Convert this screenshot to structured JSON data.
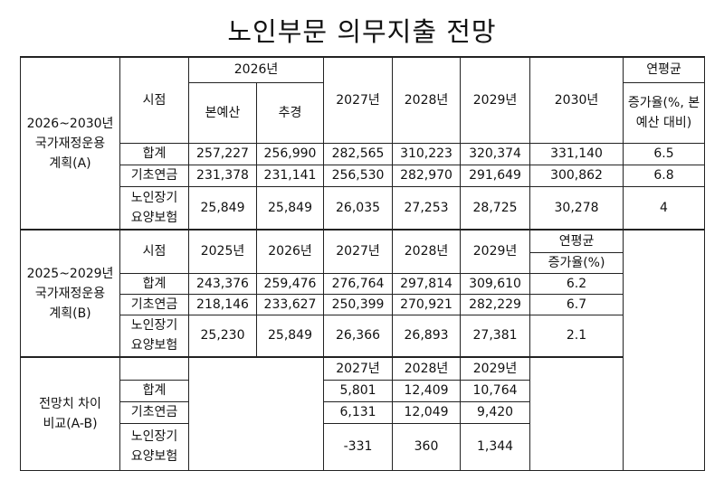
{
  "title": "노인부문 의무지출 전망",
  "sections": [
    {
      "label": "2026~2030년\n국가재정운용\n계획(A)",
      "header": {
        "time": "시점",
        "year": "2026년",
        "sub": [
          "본예산",
          "추경"
        ],
        "years": [
          "2027년",
          "2028년",
          "2029년",
          "2030년"
        ],
        "avg": "연평균",
        "avg_sub": "증가율(%, 본\n예산 대비)"
      },
      "rows": [
        {
          "label": "합계",
          "values": [
            "257,227",
            "256,990",
            "282,565",
            "310,223",
            "320,374",
            "331,140",
            "6.5"
          ]
        },
        {
          "label": "기초연금",
          "values": [
            "231,378",
            "231,141",
            "256,530",
            "282,970",
            "291,649",
            "300,862",
            "6.8"
          ]
        },
        {
          "label": "노인장기\n요양보험",
          "values": [
            "25,849",
            "25,849",
            "26,035",
            "27,253",
            "28,725",
            "30,278",
            "4"
          ]
        }
      ]
    },
    {
      "label": "2025~2029년\n국가재정운용\n계획(B)",
      "header": {
        "time": "시점",
        "years": [
          "2025년",
          "2026년",
          "2027년",
          "2028년",
          "2029년"
        ],
        "avg": "연평균",
        "avg_sub": "증가율(%)"
      },
      "rows": [
        {
          "label": "합계",
          "values": [
            "243,376",
            "259,476",
            "276,764",
            "297,814",
            "309,610",
            "6.2"
          ]
        },
        {
          "label": "기초연금",
          "values": [
            "218,146",
            "233,627",
            "250,399",
            "270,921",
            "282,229",
            "6.7"
          ]
        },
        {
          "label": "노인장기\n요양보험",
          "values": [
            "25,230",
            "25,849",
            "26,366",
            "26,893",
            "27,381",
            "2.1"
          ]
        }
      ]
    },
    {
      "label": "전망치 차이\n비교(A-B)",
      "header": {
        "years": [
          "2027년",
          "2028년",
          "2029년"
        ]
      },
      "rows": [
        {
          "label": "합계",
          "values": [
            "5,801",
            "12,409",
            "10,764"
          ]
        },
        {
          "label": "기초연금",
          "values": [
            "6,131",
            "12,049",
            "9,420"
          ]
        },
        {
          "label": "노인장기\n요양보험",
          "values": [
            "-331",
            "360",
            "1,344"
          ]
        }
      ]
    }
  ]
}
